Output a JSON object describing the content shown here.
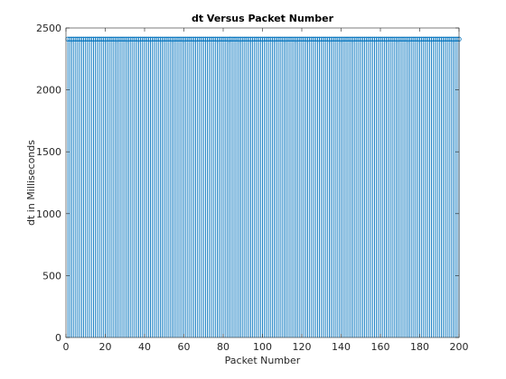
{
  "chart_data": {
    "type": "stem",
    "title": "dt Versus Packet Number",
    "xlabel": "Packet Number",
    "ylabel": "dt in Milliseconds",
    "xlim": [
      0,
      200
    ],
    "ylim": [
      0,
      2500
    ],
    "xticks": [
      0,
      20,
      40,
      60,
      80,
      100,
      120,
      140,
      160,
      180,
      200
    ],
    "yticks": [
      0,
      500,
      1000,
      1500,
      2000,
      2500
    ],
    "grid": false,
    "legend": "none",
    "series_color": "#0072bd",
    "marker": "circle",
    "series": [
      {
        "x_start": 1,
        "x_end": 200,
        "x_step": 1,
        "value": 2410
      }
    ]
  }
}
